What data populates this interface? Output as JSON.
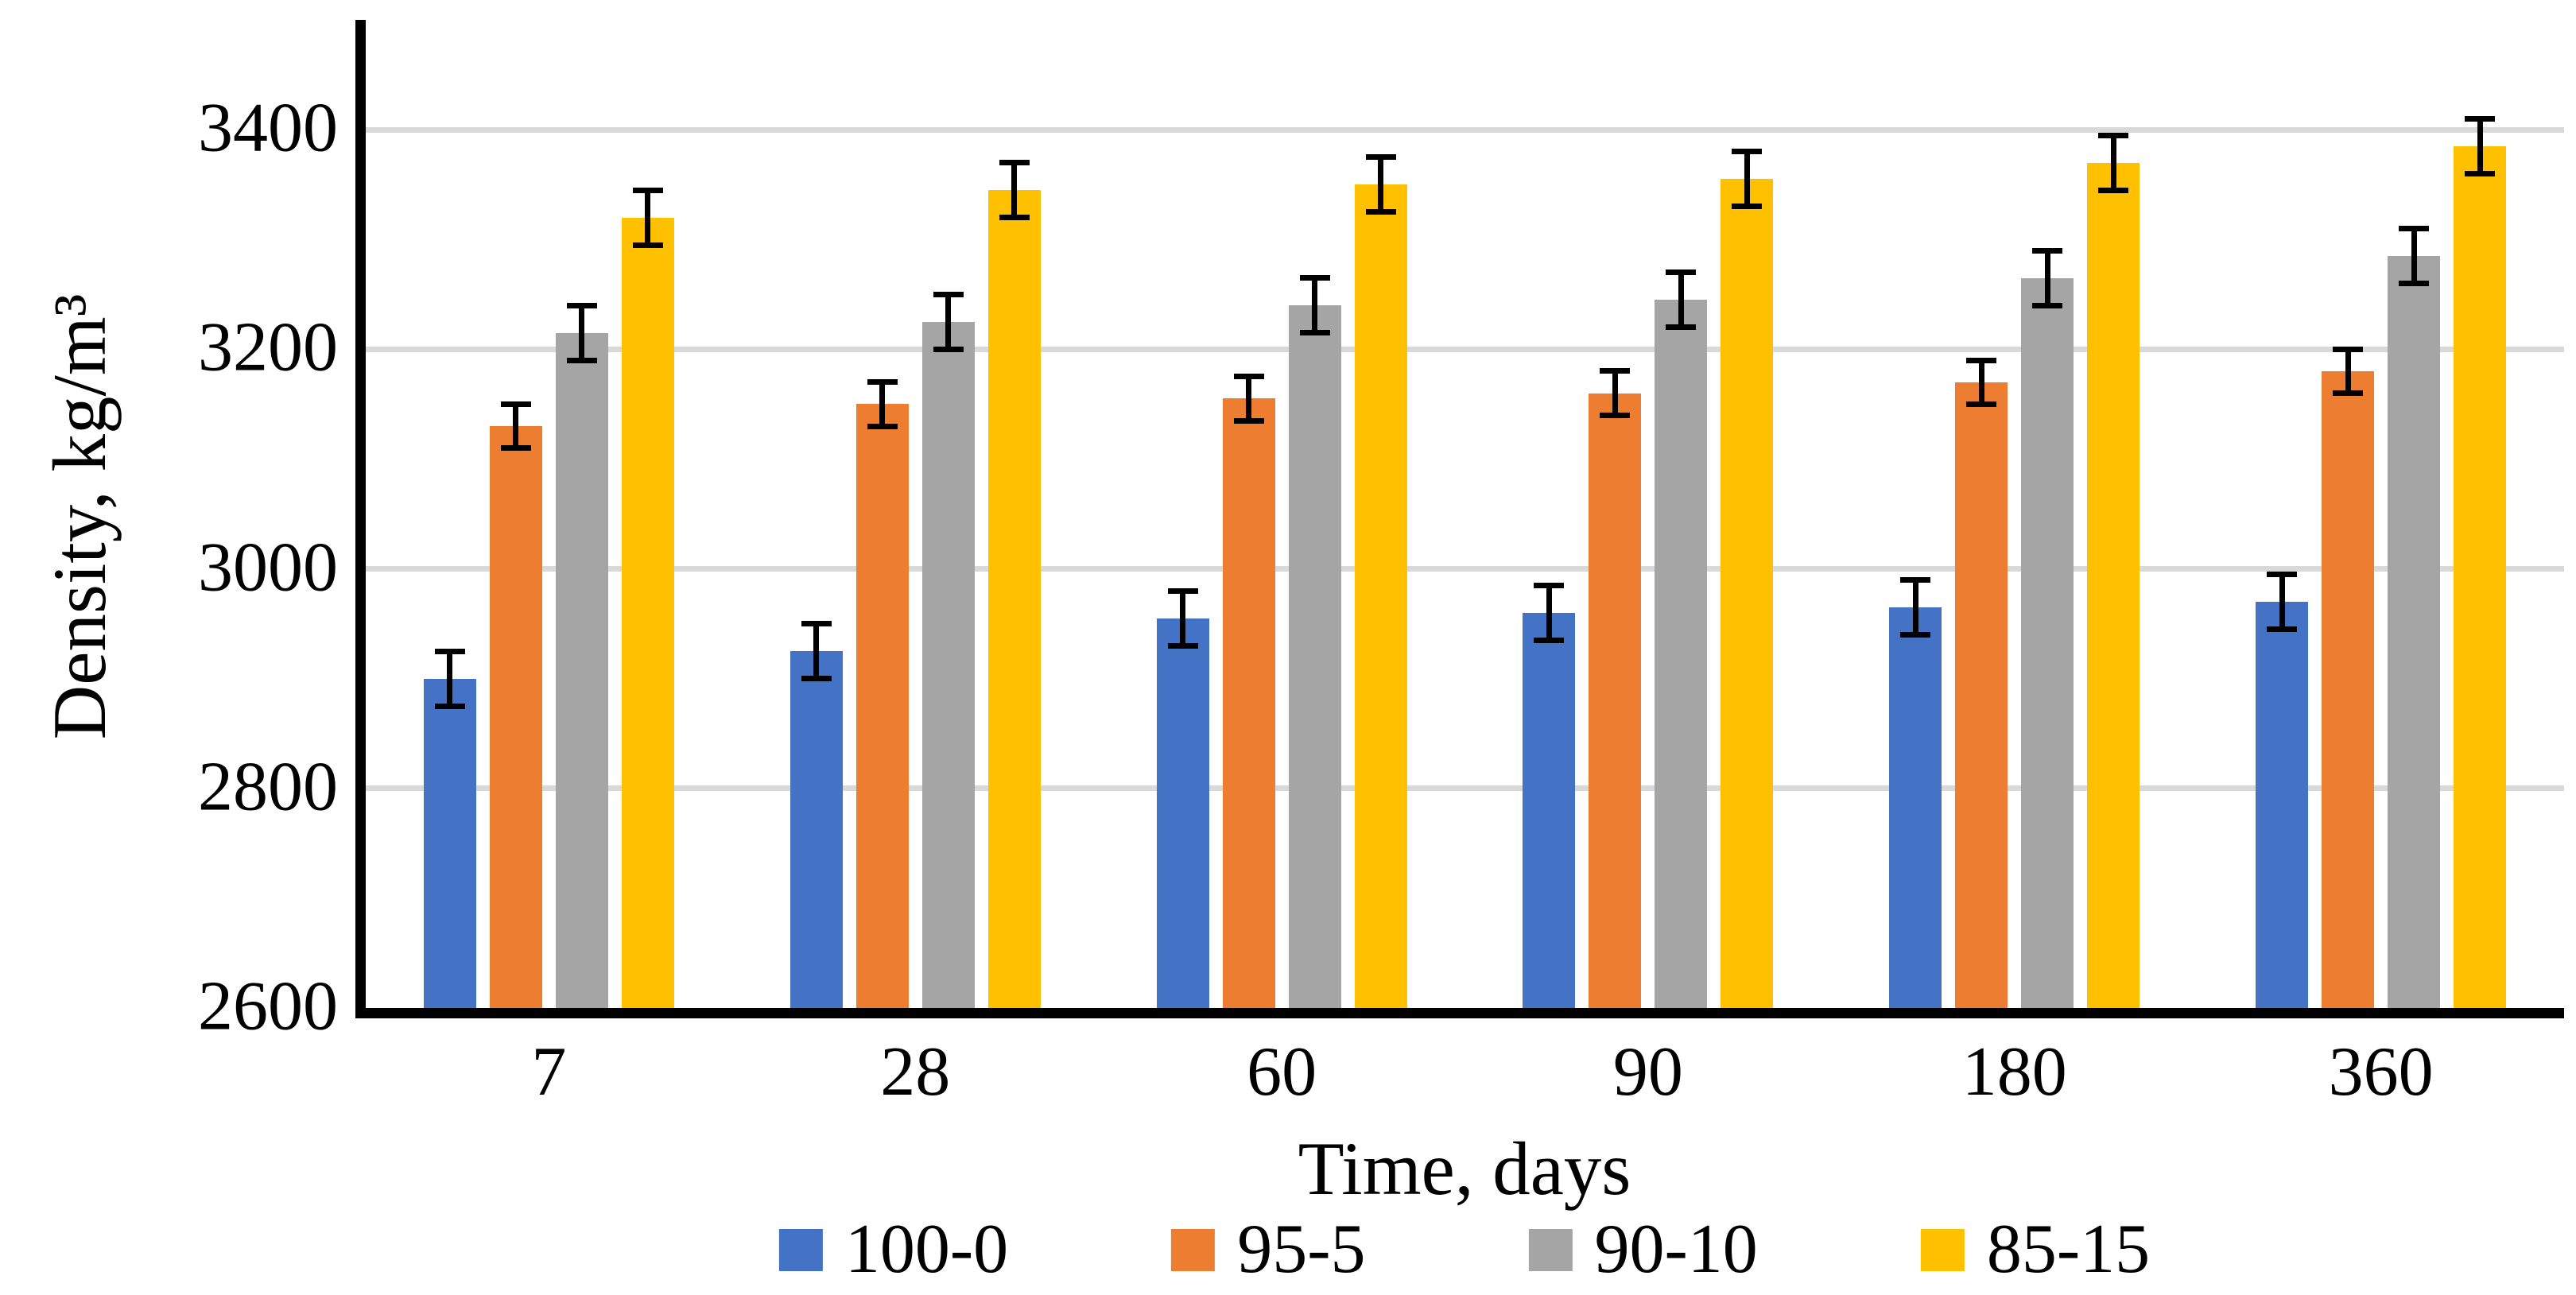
{
  "chart_data": {
    "type": "bar",
    "title": "",
    "xlabel": "Time, days",
    "ylabel": "Density, kg/m³",
    "categories": [
      "7",
      "28",
      "60",
      "90",
      "180",
      "360"
    ],
    "series": [
      {
        "name": "100-0",
        "color": "#4472C4",
        "values": [
          2900,
          2925,
          2955,
          2960,
          2965,
          2970
        ],
        "error": 25
      },
      {
        "name": "95-5",
        "color": "#ED7D31",
        "values": [
          3130,
          3150,
          3155,
          3160,
          3170,
          3180
        ],
        "error": 20
      },
      {
        "name": "90-10",
        "color": "#A5A5A5",
        "values": [
          3215,
          3225,
          3240,
          3245,
          3265,
          3285
        ],
        "error": 25
      },
      {
        "name": "85-15",
        "color": "#FFC000",
        "values": [
          3320,
          3345,
          3350,
          3355,
          3370,
          3385
        ],
        "error": 25
      }
    ],
    "y_axis": {
      "min": 2600,
      "max": 3500,
      "tick_step": 200,
      "tick_labels": [
        "2600",
        "2800",
        "3000",
        "3200",
        "3400"
      ]
    },
    "gridlines": {
      "values": [
        2800,
        3000,
        3200,
        3400
      ],
      "color": "#D9D9D9"
    },
    "axis_color": "#000000",
    "error_bar_color": "#000000",
    "legend_position": "bottom",
    "grid": true
  }
}
